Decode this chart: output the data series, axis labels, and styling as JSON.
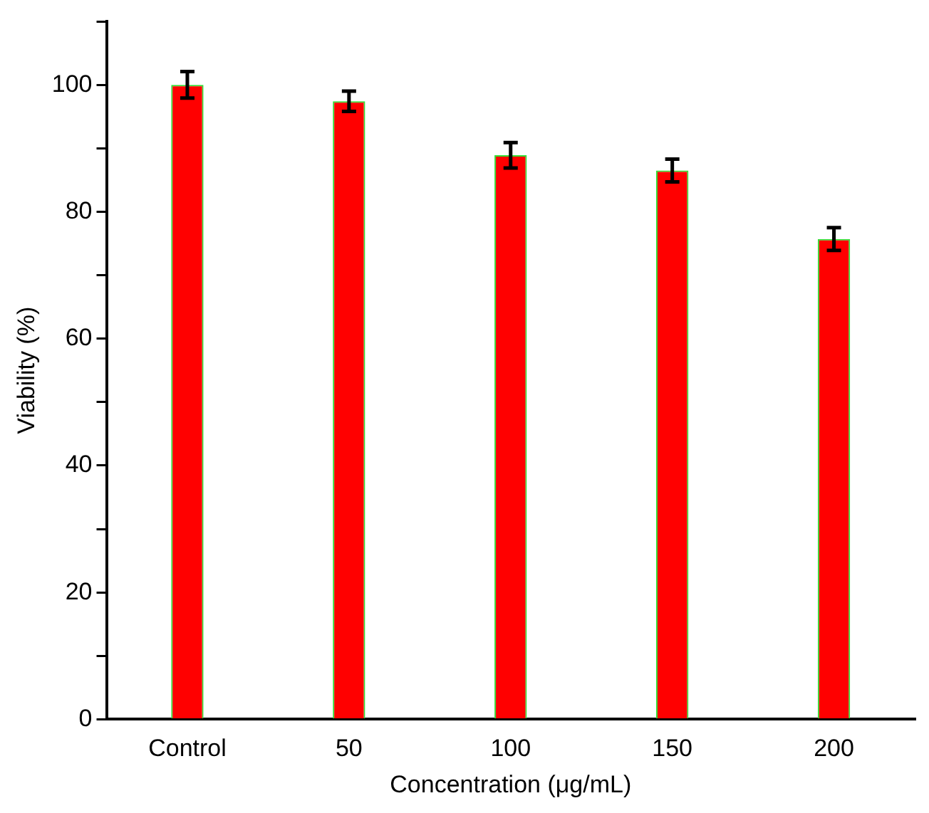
{
  "chart_data": {
    "type": "bar",
    "xlabel": "Concentration (μg/mL)",
    "ylabel": "Viability (%)",
    "categories": [
      "Control",
      "50",
      "100",
      "150",
      "200"
    ],
    "values": [
      100,
      97.4,
      88.9,
      86.5,
      75.7
    ],
    "errors": [
      2.1,
      1.6,
      2,
      1.8,
      1.8
    ],
    "color": "#ff0000",
    "ylim": [
      0,
      110
    ],
    "yticks": [
      0,
      {
        "value": 10,
        "label": null
      },
      20,
      {
        "value": 30,
        "label": null
      },
      40,
      {
        "value": 50,
        "label": null
      },
      60,
      {
        "value": 70,
        "label": null
      },
      80,
      {
        "value": 90,
        "label": null
      },
      100,
      {
        "value": 110,
        "label": null
      }
    ],
    "grid": false,
    "legend": false
  }
}
